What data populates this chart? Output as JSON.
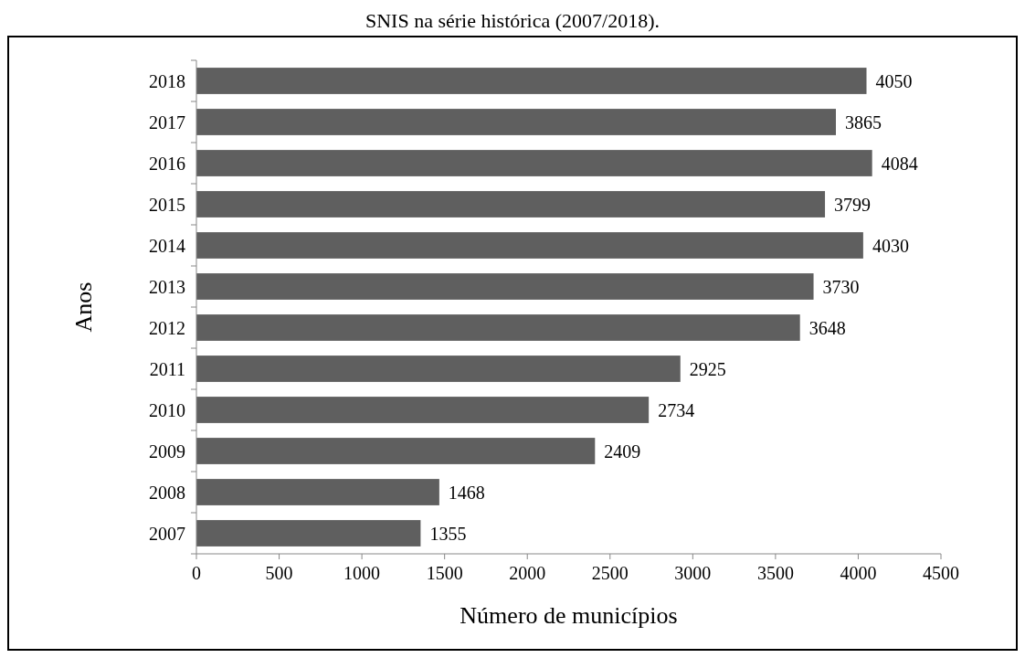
{
  "chart_data": {
    "type": "bar",
    "orientation": "horizontal",
    "title": "SNIS na série histórica (2007/2018).",
    "xlabel": "Número de municípios",
    "ylabel": "Anos",
    "categories": [
      "2018",
      "2017",
      "2016",
      "2015",
      "2014",
      "2013",
      "2012",
      "2011",
      "2010",
      "2009",
      "2008",
      "2007"
    ],
    "values": [
      4050,
      3865,
      4084,
      3799,
      4030,
      3730,
      3648,
      2925,
      2734,
      2409,
      1468,
      1355
    ],
    "color": "#5f5f5f",
    "xlim": [
      0,
      4500
    ],
    "xticks": [
      0,
      500,
      1000,
      1500,
      2000,
      2500,
      3000,
      3500,
      4000,
      4500
    ],
    "data_labels": true,
    "grid": false
  }
}
